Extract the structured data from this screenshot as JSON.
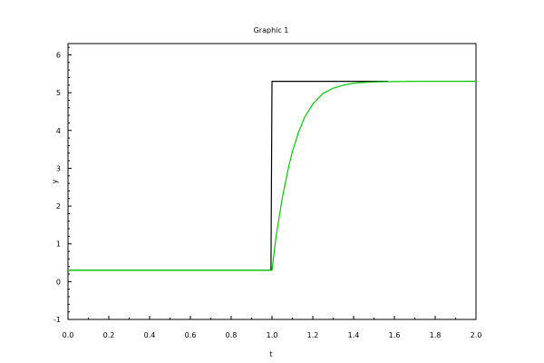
{
  "chart_data": {
    "type": "line",
    "title": "Graphic 1",
    "xlabel": "t",
    "ylabel": "y",
    "xlim": [
      0,
      2
    ],
    "ylim": [
      -1,
      6.3
    ],
    "x_ticks": [
      0.0,
      0.2,
      0.4,
      0.6,
      0.8,
      1.0,
      1.2,
      1.4,
      1.6,
      1.8,
      2.0
    ],
    "x_tick_labels": [
      "0.0",
      "0.2",
      "0.4",
      "0.6",
      "0.8",
      "1.0",
      "1.2",
      "1.4",
      "1.6",
      "1.8",
      "2.0"
    ],
    "y_ticks": [
      -1,
      0,
      1,
      2,
      3,
      4,
      5,
      6
    ],
    "y_tick_labels": [
      "-1",
      "0",
      "1",
      "2",
      "3",
      "4",
      "5",
      "6"
    ],
    "grid": false,
    "series": [
      {
        "color": "#000000",
        "x": [
          0.0,
          0.995,
          1.0,
          1.57
        ],
        "y": [
          0.3,
          0.3,
          5.3,
          5.3
        ]
      },
      {
        "color": "#00cc00",
        "x": [
          0.0,
          1.0,
          1.02,
          1.05,
          1.08,
          1.1,
          1.13,
          1.16,
          1.2,
          1.25,
          1.3,
          1.35,
          1.4,
          1.45,
          1.5,
          1.55,
          1.6,
          1.7,
          1.8,
          1.9,
          2.0
        ],
        "y": [
          0.3,
          0.3,
          1.2,
          2.2,
          3.0,
          3.45,
          3.95,
          4.35,
          4.7,
          4.98,
          5.12,
          5.2,
          5.25,
          5.27,
          5.285,
          5.29,
          5.295,
          5.3,
          5.3,
          5.3,
          5.3
        ]
      }
    ]
  }
}
